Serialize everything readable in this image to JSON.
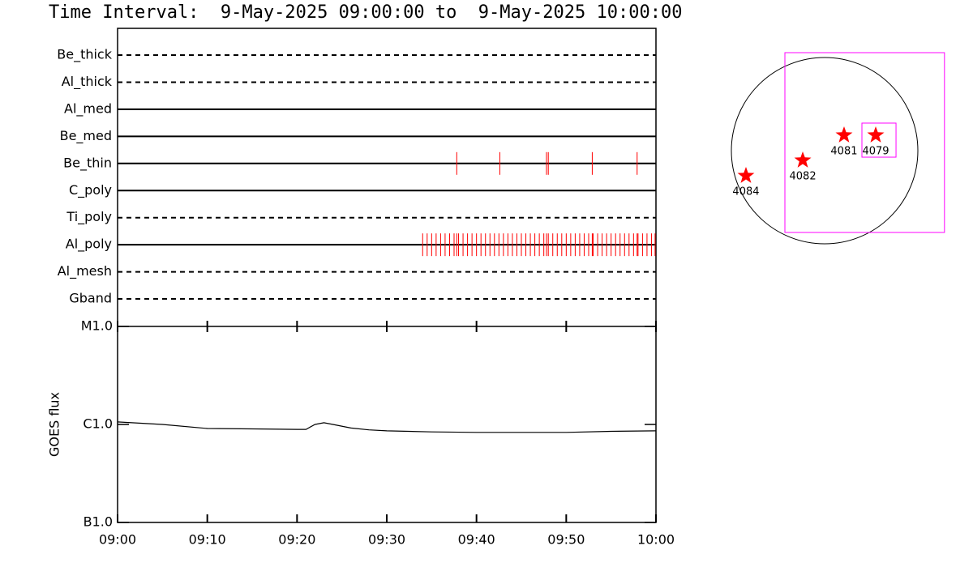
{
  "chart_data": [
    {
      "type": "event",
      "title": "Time Interval:  9-May-2025 09:00:00 to  9-May-2025 10:00:00",
      "color": "#ff0000",
      "xlim": [
        0,
        60
      ],
      "xticks": [
        {
          "value": 0,
          "label": "09:00"
        },
        {
          "value": 10,
          "label": "09:10"
        },
        {
          "value": 20,
          "label": "09:20"
        },
        {
          "value": 30,
          "label": "09:30"
        },
        {
          "value": 40,
          "label": "09:40"
        },
        {
          "value": 50,
          "label": "09:50"
        },
        {
          "value": 60,
          "label": "10:00"
        }
      ],
      "series": [
        {
          "name": "Be_thick",
          "style": "dashed",
          "values": []
        },
        {
          "name": "Al_thick",
          "style": "dashed",
          "values": []
        },
        {
          "name": "Al_med",
          "style": "solid",
          "values": []
        },
        {
          "name": "Be_med",
          "style": "solid",
          "values": []
        },
        {
          "name": "Be_thin",
          "style": "solid",
          "values": [
            37.8,
            42.6,
            47.8,
            48.0,
            52.9,
            57.9
          ]
        },
        {
          "name": "C_poly",
          "style": "solid",
          "values": []
        },
        {
          "name": "Ti_poly",
          "style": "dashed",
          "values": []
        },
        {
          "name": "Al_poly",
          "style": "solid",
          "values": [
            34.0,
            34.5,
            35.0,
            35.5,
            36.0,
            36.5,
            37.0,
            37.5,
            37.8,
            38.0,
            38.5,
            39.0,
            39.5,
            40.0,
            40.5,
            41.0,
            41.5,
            42.0,
            42.5,
            43.0,
            43.5,
            44.0,
            44.5,
            45.0,
            45.5,
            46.0,
            46.5,
            47.0,
            47.5,
            47.8,
            48.0,
            48.5,
            49.0,
            49.5,
            50.0,
            50.5,
            51.0,
            51.5,
            52.0,
            52.5,
            52.9,
            53.0,
            53.5,
            54.0,
            54.5,
            55.0,
            55.5,
            56.0,
            56.5,
            57.0,
            57.5,
            57.9,
            58.0,
            58.5,
            59.0,
            59.5,
            59.9
          ]
        },
        {
          "name": "Al_mesh",
          "style": "dashed",
          "values": []
        },
        {
          "name": "Gband",
          "style": "dashed",
          "values": []
        }
      ]
    },
    {
      "type": "line",
      "ylabel": "GOES flux",
      "log_scale": true,
      "color": "#000000",
      "xlim": [
        0,
        60
      ],
      "x": [
        0,
        5,
        10,
        15,
        20,
        21,
        22,
        23,
        24,
        26,
        28,
        30,
        35,
        40,
        45,
        50,
        55,
        60
      ],
      "values": [
        1.06e-06,
        1e-06,
        9.1e-07,
        9e-07,
        8.9e-07,
        8.9e-07,
        1e-06,
        1.04e-06,
        1e-06,
        9.2e-07,
        8.8e-07,
        8.6e-07,
        8.4e-07,
        8.3e-07,
        8.3e-07,
        8.3e-07,
        8.5e-07,
        8.6e-07
      ],
      "ylim": [
        1e-07,
        1e-05
      ],
      "yticks": [
        {
          "value": 1e-07,
          "label": "B1.0"
        },
        {
          "value": 1e-06,
          "label": "C1.0"
        },
        {
          "value": 1e-05,
          "label": "M1.0"
        }
      ]
    },
    {
      "type": "map",
      "radius": 960,
      "color": "#ff0000",
      "box_color": "#ff00ff",
      "labels": [
        "4084",
        "4082",
        "4081",
        "4079"
      ],
      "x": [
        -810,
        -225,
        200,
        526
      ],
      "y": [
        -259,
        -100,
        159,
        159
      ],
      "boxes": [
        {
          "x": [
            -409,
            1234
          ],
          "y": [
            1010,
            -843
          ]
        },
        {
          "x": [
            384,
            735
          ],
          "y": [
            284,
            -67
          ]
        }
      ]
    }
  ]
}
